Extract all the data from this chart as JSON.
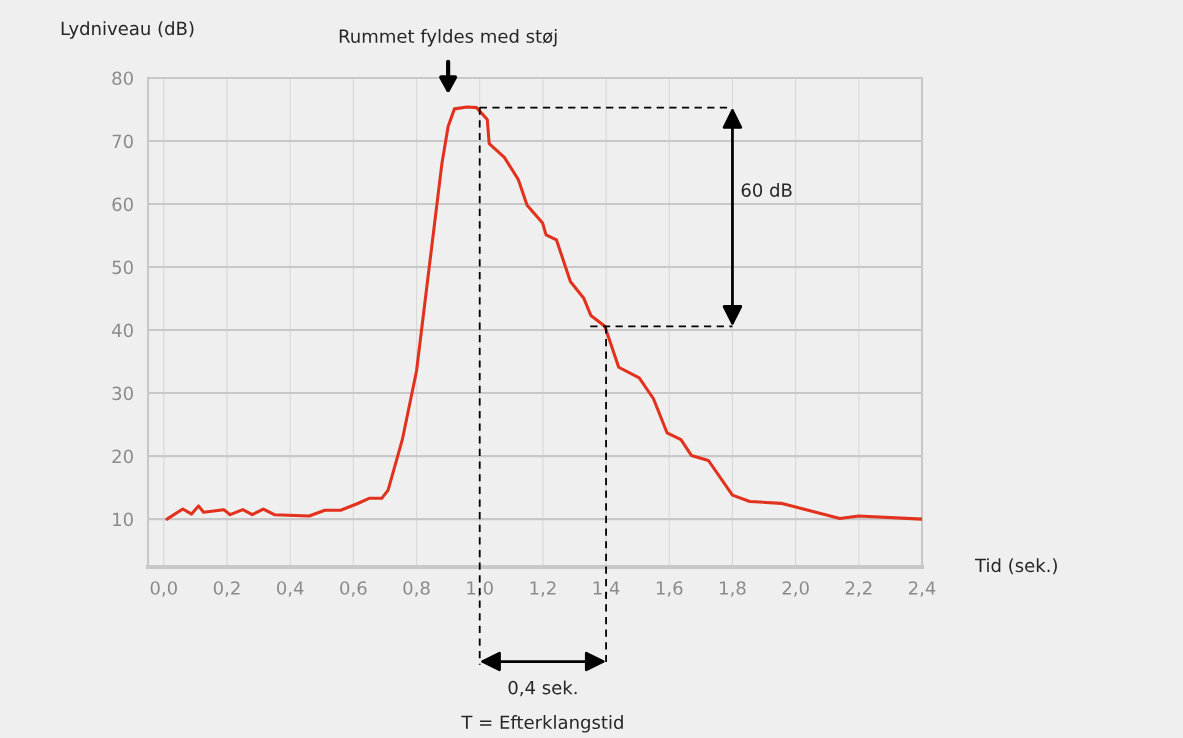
{
  "chart_data": {
    "type": "line",
    "xlabel": "Tid (sek.)",
    "ylabel": "Lydniveau (dB)",
    "x": [
      0.01,
      0.06,
      0.088,
      0.11,
      0.126,
      0.19,
      0.21,
      0.25,
      0.28,
      0.315,
      0.35,
      0.46,
      0.51,
      0.56,
      0.61,
      0.65,
      0.69,
      0.71,
      0.755,
      0.8,
      0.84,
      0.88,
      0.9,
      0.92,
      0.96,
      0.99,
      1.024,
      1.03,
      1.078,
      1.122,
      1.15,
      1.199,
      1.21,
      1.243,
      1.287,
      1.33,
      1.352,
      1.396,
      1.44,
      1.505,
      1.55,
      1.593,
      1.637,
      1.67,
      1.724,
      1.8,
      1.855,
      1.954,
      2.064,
      2.14,
      2.2,
      2.4
    ],
    "series": [
      {
        "color": "#e2311d",
        "values": [
          10.0,
          11.6,
          10.8,
          12.1,
          11.1,
          11.5,
          10.7,
          11.5,
          10.7,
          11.6,
          10.7,
          10.5,
          11.4,
          11.4,
          12.4,
          13.3,
          13.3,
          14.6,
          22.6,
          33.5,
          49.9,
          66.3,
          72.3,
          75.1,
          75.4,
          75.3,
          73.4,
          69.6,
          67.4,
          63.9,
          59.8,
          57.0,
          55.1,
          54.3,
          47.7,
          45.0,
          42.3,
          40.6,
          34.1,
          32.4,
          29.1,
          23.7,
          22.6,
          20.1,
          19.3,
          13.8,
          12.8,
          12.5,
          11.1,
          10.1,
          10.5,
          10.0
        ]
      }
    ],
    "xlim": [
      -0.05,
      2.4
    ],
    "ylim": [
      2.4,
      80
    ],
    "xticks": [
      {
        "value": 0.0,
        "label": "0,0"
      },
      {
        "value": 0.2,
        "label": "0,2"
      },
      {
        "value": 0.4,
        "label": "0,4"
      },
      {
        "value": 0.6,
        "label": "0,6"
      },
      {
        "value": 0.8,
        "label": "0,8"
      },
      {
        "value": 1.0,
        "label": "1,0"
      },
      {
        "value": 1.2,
        "label": "1,2"
      },
      {
        "value": 1.4,
        "label": "1,4"
      },
      {
        "value": 1.6,
        "label": "1,6"
      },
      {
        "value": 1.8,
        "label": "1,8"
      },
      {
        "value": 2.0,
        "label": "2,0"
      },
      {
        "value": 2.2,
        "label": "2,2"
      },
      {
        "value": 2.4,
        "label": "2,4"
      }
    ],
    "yticks": [
      10,
      20,
      30,
      40,
      50,
      60,
      70,
      80
    ],
    "grid": true,
    "line_style": "solid",
    "ref_lines": [
      {
        "axis": "y",
        "value": 75.3,
        "line_style": "dashed",
        "color": "#000000"
      },
      {
        "axis": "x",
        "value": 1.0,
        "line_style": "dashed",
        "color": "#000000"
      },
      {
        "axis": "y",
        "value": 40.6,
        "line_style": "dashed",
        "color": "#000000"
      },
      {
        "axis": "x",
        "value": 1.4,
        "line_style": "dashed",
        "color": "#000000"
      }
    ],
    "annotations": [
      "Rummet fyldes med støj",
      "60 dB",
      "0,4 sek.",
      "T = Efterklangstid"
    ]
  }
}
